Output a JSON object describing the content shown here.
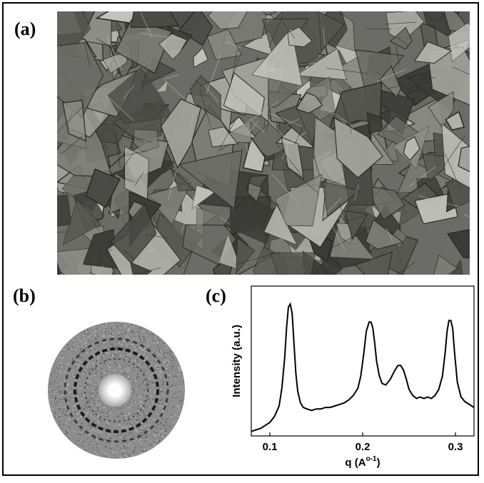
{
  "figure": {
    "panels": [
      {
        "label": "(a)",
        "content": "micrograph"
      },
      {
        "label": "(b)",
        "content": "diffraction-pattern"
      },
      {
        "label": "(c)",
        "content": "chart"
      }
    ]
  },
  "colors": {
    "micrograph_base": "#6b6b67",
    "micrograph_light": "#b5b6b0",
    "micrograph_dark": "#2f2f2d",
    "diffraction_disc": "#8c8c8c",
    "line": "#000000"
  },
  "chart_data": {
    "type": "line",
    "title": "",
    "xlabel": "q (A",
    "xlabel_superscript": "o-1",
    "xlabel_suffix": ")",
    "ylabel": "Intensity (a.u.)",
    "xlim": [
      0.08,
      0.32
    ],
    "ylim": [
      0,
      1.0
    ],
    "xticks": [
      0.1,
      0.2,
      0.3
    ],
    "xtick_labels": [
      "0.1",
      "0.2",
      "0.3"
    ],
    "y_tick_labels_shown": false,
    "grid": false,
    "series": [
      {
        "x": [
          0.08,
          0.085,
          0.09,
          0.095,
          0.1,
          0.105,
          0.11,
          0.113,
          0.116,
          0.118,
          0.12,
          0.122,
          0.124,
          0.126,
          0.128,
          0.13,
          0.133,
          0.136,
          0.14,
          0.145,
          0.15,
          0.155,
          0.16,
          0.165,
          0.17,
          0.175,
          0.18,
          0.185,
          0.19,
          0.195,
          0.198,
          0.201,
          0.204,
          0.207,
          0.209,
          0.211,
          0.213,
          0.215,
          0.218,
          0.221,
          0.225,
          0.23,
          0.234,
          0.238,
          0.241,
          0.244,
          0.247,
          0.25,
          0.254,
          0.258,
          0.262,
          0.266,
          0.27,
          0.274,
          0.278,
          0.282,
          0.286,
          0.289,
          0.291,
          0.293,
          0.295,
          0.297,
          0.299,
          0.302,
          0.306,
          0.31,
          0.315,
          0.32
        ],
        "y": [
          0.03,
          0.04,
          0.05,
          0.07,
          0.09,
          0.13,
          0.2,
          0.32,
          0.52,
          0.72,
          0.86,
          0.88,
          0.82,
          0.62,
          0.42,
          0.3,
          0.22,
          0.19,
          0.18,
          0.17,
          0.18,
          0.18,
          0.19,
          0.19,
          0.2,
          0.21,
          0.22,
          0.24,
          0.27,
          0.32,
          0.4,
          0.54,
          0.7,
          0.76,
          0.76,
          0.72,
          0.62,
          0.5,
          0.4,
          0.35,
          0.34,
          0.38,
          0.43,
          0.47,
          0.47,
          0.44,
          0.38,
          0.31,
          0.27,
          0.25,
          0.26,
          0.25,
          0.26,
          0.25,
          0.27,
          0.31,
          0.4,
          0.56,
          0.7,
          0.77,
          0.77,
          0.72,
          0.56,
          0.36,
          0.26,
          0.23,
          0.21,
          0.19
        ]
      }
    ]
  }
}
